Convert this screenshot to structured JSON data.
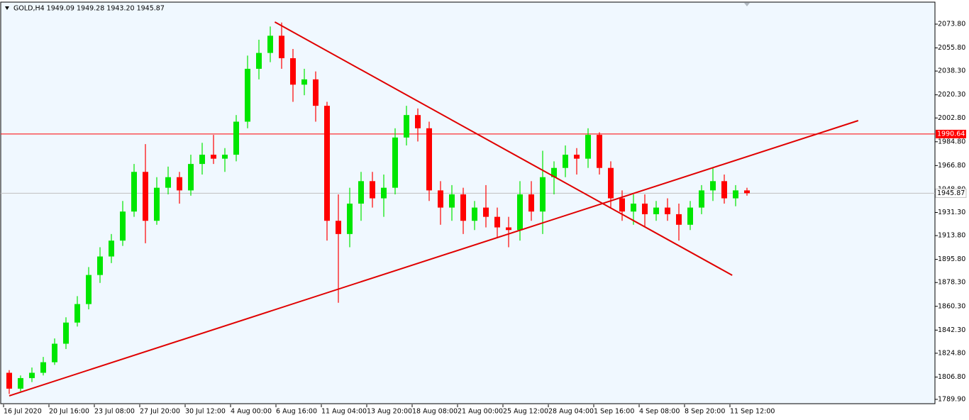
{
  "chart_data": {
    "type": "candlestick",
    "title": "GOLD,H4  1949.09 1949.28 1943.20 1945.87",
    "categories": [
      "16 Jul 2020",
      null,
      null,
      null,
      "20 Jul 16:00",
      null,
      null,
      null,
      "23 Jul 08:00",
      null,
      null,
      null,
      "27 Jul 20:00",
      null,
      null,
      null,
      "30 Jul 12:00",
      null,
      null,
      null,
      "4 Aug 00:00",
      null,
      null,
      null,
      "6 Aug 16:00",
      null,
      null,
      null,
      "11 Aug 04:00",
      null,
      null,
      null,
      "13 Aug 20:00",
      null,
      null,
      null,
      "18 Aug 08:00",
      null,
      null,
      null,
      "21 Aug 00:00",
      null,
      null,
      null,
      "25 Aug 12:00",
      null,
      null,
      null,
      "28 Aug 04:00",
      null,
      null,
      null,
      "1 Sep 16:00",
      null,
      null,
      null,
      "4 Sep 08:00",
      null,
      null,
      null,
      "8 Sep 20:00",
      null,
      null,
      null,
      "11 Sep 12:00",
      null
    ],
    "open": [
      1810,
      1798,
      1806,
      1810,
      1818,
      1832,
      1848,
      1862,
      1884,
      1898,
      1910,
      1932,
      1962,
      1925,
      1950,
      1958,
      1948,
      1968,
      1975,
      1972,
      1975,
      2000,
      2040,
      2052,
      2065,
      2048,
      2028,
      2032,
      2012,
      1925,
      1915,
      1938,
      1955,
      1942,
      1950,
      1988,
      2005,
      1995,
      1948,
      1935,
      1945,
      1925,
      1935,
      1928,
      1920,
      1918,
      1945,
      1932,
      1958,
      1965,
      1975,
      1972,
      1990,
      1965,
      1942,
      1932,
      1938,
      1930,
      1935,
      1930,
      1922,
      1935,
      1948,
      1955,
      1942,
      1948
    ],
    "high": [
      1812,
      1808,
      1814,
      1822,
      1836,
      1852,
      1868,
      1890,
      1905,
      1915,
      1940,
      1968,
      1983,
      1958,
      1966,
      1962,
      1975,
      1984,
      1990,
      1980,
      2005,
      2050,
      2062,
      2072,
      2075,
      2055,
      2040,
      2038,
      2015,
      1945,
      1950,
      1962,
      1962,
      1960,
      1995,
      2012,
      2010,
      2000,
      1955,
      1952,
      1950,
      1940,
      1952,
      1935,
      1928,
      1955,
      1955,
      1978,
      1970,
      1982,
      1980,
      1995,
      1992,
      1970,
      1948,
      1945,
      1945,
      1940,
      1942,
      1938,
      1940,
      1952,
      1965,
      1960,
      1952,
      1950
    ],
    "low": [
      1794,
      1796,
      1803,
      1808,
      1816,
      1828,
      1845,
      1858,
      1878,
      1893,
      1906,
      1928,
      1908,
      1922,
      1945,
      1938,
      1944,
      1960,
      1968,
      1962,
      1970,
      1995,
      2032,
      2045,
      2040,
      2015,
      2020,
      2000,
      1910,
      1863,
      1905,
      1925,
      1935,
      1928,
      1945,
      1982,
      1985,
      1940,
      1922,
      1925,
      1915,
      1918,
      1920,
      1912,
      1905,
      1910,
      1925,
      1915,
      1945,
      1958,
      1960,
      1965,
      1960,
      1935,
      1925,
      1922,
      1920,
      1925,
      1925,
      1910,
      1918,
      1930,
      1940,
      1938,
      1936,
      1944
    ],
    "close": [
      1798,
      1806,
      1810,
      1818,
      1832,
      1848,
      1862,
      1884,
      1898,
      1910,
      1932,
      1962,
      1925,
      1950,
      1958,
      1948,
      1968,
      1975,
      1972,
      1975,
      2000,
      2040,
      2052,
      2065,
      2048,
      2028,
      2032,
      2012,
      1925,
      1915,
      1938,
      1955,
      1942,
      1950,
      1988,
      2005,
      1995,
      1948,
      1935,
      1945,
      1925,
      1935,
      1928,
      1920,
      1918,
      1945,
      1932,
      1958,
      1965,
      1975,
      1972,
      1990,
      1965,
      1942,
      1932,
      1938,
      1930,
      1935,
      1930,
      1922,
      1935,
      1948,
      1955,
      1942,
      1948,
      1945.87
    ],
    "up_color": "#00e600",
    "down_color": "#ff0000",
    "ylim": [
      1786.1,
      2089.9
    ],
    "yticks": [
      {
        "value": 1789.9,
        "label": "1789.90"
      },
      {
        "value": 1806.8,
        "label": "1806.80"
      },
      {
        "value": 1824.8,
        "label": "1824.80"
      },
      {
        "value": 1842.3,
        "label": "1842.30"
      },
      {
        "value": 1860.3,
        "label": "1860.30"
      },
      {
        "value": 1878.3,
        "label": "1878.30"
      },
      {
        "value": 1895.8,
        "label": "1895.80"
      },
      {
        "value": 1913.8,
        "label": "1913.80"
      },
      {
        "value": 1931.3,
        "label": "1931.30"
      },
      {
        "value": 1948.8,
        "label": "1948.80"
      },
      {
        "value": 1966.8,
        "label": "1966.80"
      },
      {
        "value": 1984.8,
        "label": "1984.80"
      },
      {
        "value": 2002.8,
        "label": "2002.80"
      },
      {
        "value": 2020.3,
        "label": "2020.30"
      },
      {
        "value": 2038.3,
        "label": "2038.30"
      },
      {
        "value": 2055.8,
        "label": "2055.80"
      },
      {
        "value": 2073.8,
        "label": "2073.80"
      }
    ],
    "level": {
      "value": 1990.64,
      "label": "1990.64",
      "color": "#ff0000"
    },
    "bid": {
      "value": 1945.87,
      "label": "1945.87",
      "color": "#c0c0c0"
    },
    "trendlines": [
      {
        "x": [
          23.4,
          63.7
        ],
        "y": [
          2075.4,
          1883.8
        ],
        "color": "#e00000"
      },
      {
        "x": [
          0,
          74.8
        ],
        "y": [
          1792.6,
          2000.8
        ],
        "color": "#e00000"
      }
    ]
  }
}
